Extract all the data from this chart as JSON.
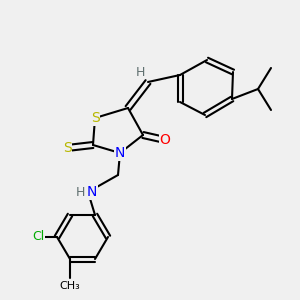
{
  "background_color": "#f0f0f0",
  "atom_colors": {
    "S": "#b8b800",
    "N": "#0000ff",
    "O": "#ff0000",
    "Cl": "#00aa00",
    "C": "#000000",
    "H": "#607070"
  },
  "figsize": [
    3.0,
    3.0
  ],
  "dpi": 100
}
